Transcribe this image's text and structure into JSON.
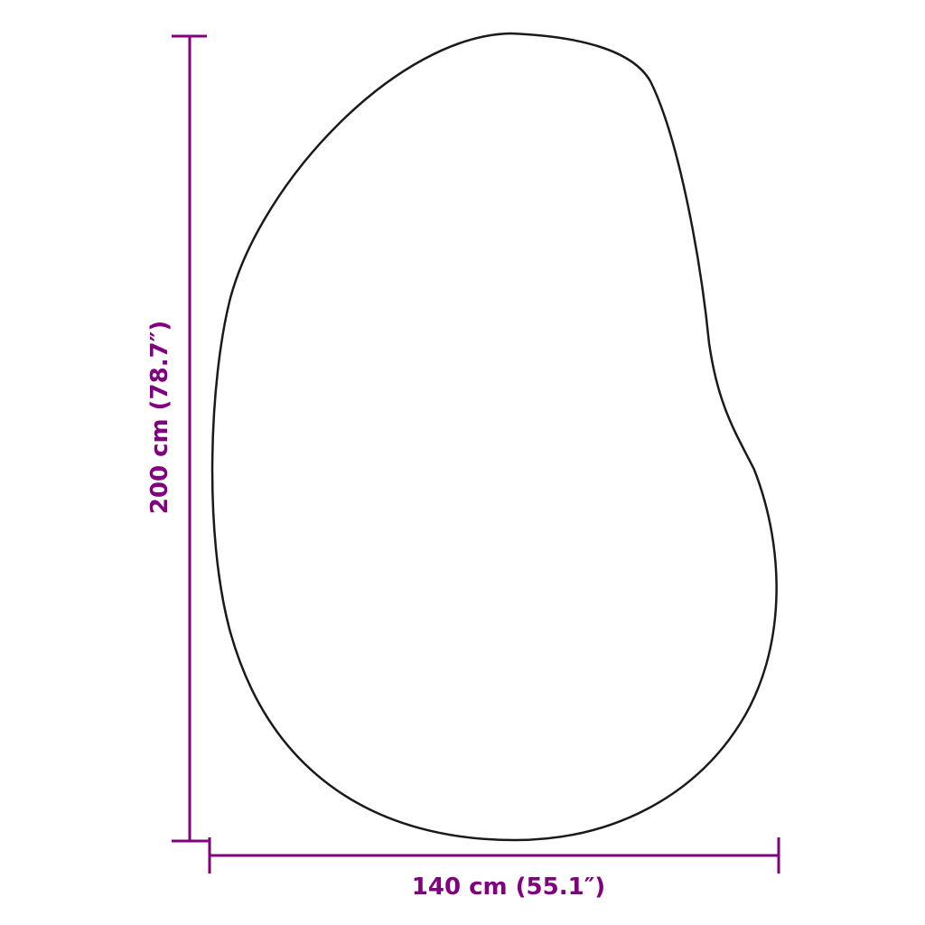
{
  "dimensions": {
    "height_label": "200 cm (78.7″)",
    "width_label": "140 cm (55.1″)"
  },
  "colors": {
    "dimension": "#800080",
    "outline": "#1a1a1a"
  }
}
